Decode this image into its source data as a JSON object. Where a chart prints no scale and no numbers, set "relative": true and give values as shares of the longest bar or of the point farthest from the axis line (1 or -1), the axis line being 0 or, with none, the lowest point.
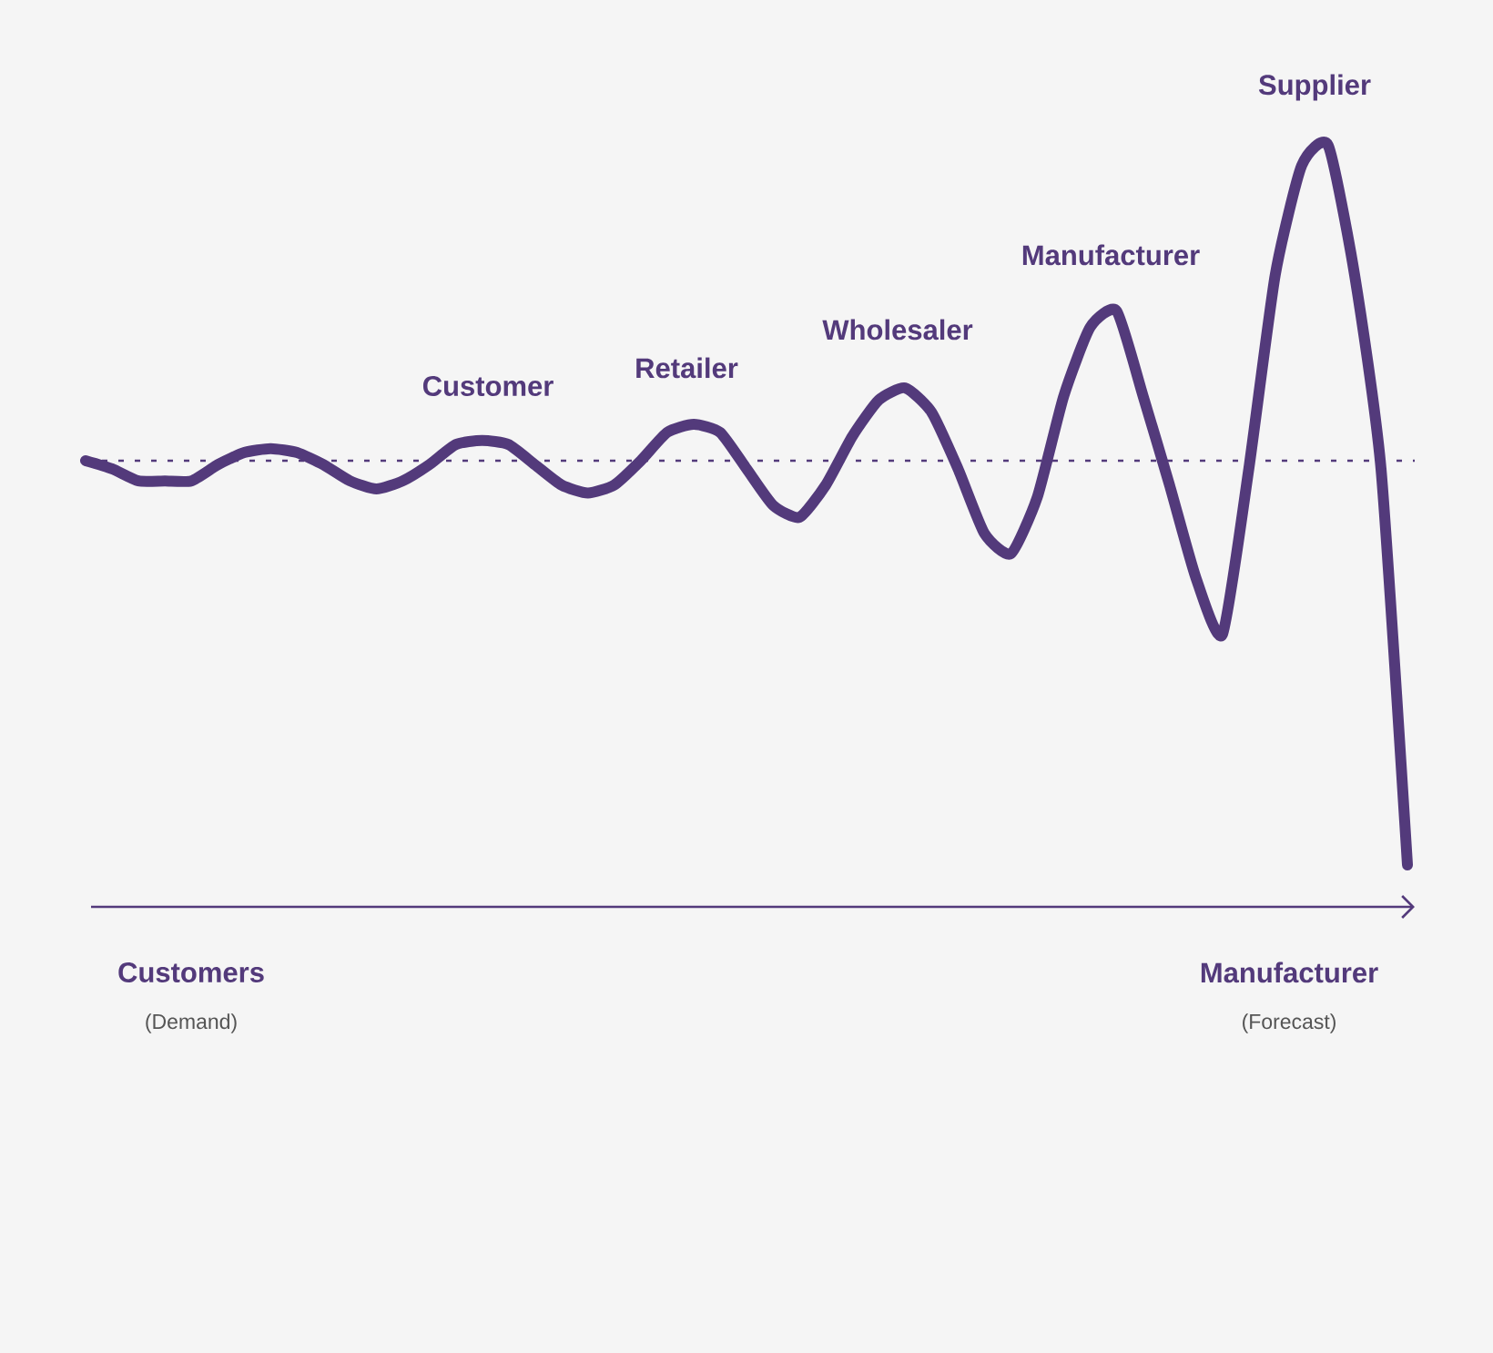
{
  "chart_data": {
    "type": "line",
    "relative": true,
    "categories": [
      null,
      null,
      null,
      null,
      null,
      null,
      null,
      null,
      null,
      null,
      null,
      null,
      null,
      null,
      null,
      null,
      null,
      null,
      null,
      null,
      null,
      null,
      null,
      null,
      null,
      null,
      null,
      null,
      null,
      null,
      null,
      null,
      null,
      null,
      null,
      null,
      null,
      null,
      null,
      null,
      null,
      null,
      null,
      null,
      null,
      null,
      null,
      null,
      null,
      null,
      null
    ],
    "series": [
      {
        "color": "#533a7b",
        "values": [
          0,
          -0.02,
          -0.05,
          -0.05,
          -0.05,
          -0.01,
          0.02,
          0.03,
          0.02,
          -0.01,
          -0.05,
          -0.07,
          -0.05,
          -0.01,
          0.04,
          0.05,
          0.04,
          -0.01,
          -0.06,
          -0.08,
          -0.06,
          0.0,
          0.07,
          0.09,
          0.07,
          -0.02,
          -0.11,
          -0.14,
          -0.06,
          0.06,
          0.15,
          0.18,
          0.12,
          -0.02,
          -0.18,
          -0.23,
          -0.09,
          0.16,
          0.33,
          0.37,
          0.16,
          -0.06,
          -0.29,
          -0.43,
          -0.02,
          0.46,
          0.73,
          0.78,
          0.46,
          -0.02,
          -1
        ]
      }
    ],
    "ref_lines": [
      {
        "axis": "y",
        "value": 0,
        "color": "#533a7b",
        "line_style": "dashed"
      }
    ],
    "marker": "none",
    "line_style": "solid",
    "annotations": [
      "Customer",
      "Retailer",
      "Wholesaler",
      "Manufacturer",
      "Supplier",
      "Customers",
      "(Demand)",
      "Manufacturer",
      "(Forecast)"
    ]
  }
}
